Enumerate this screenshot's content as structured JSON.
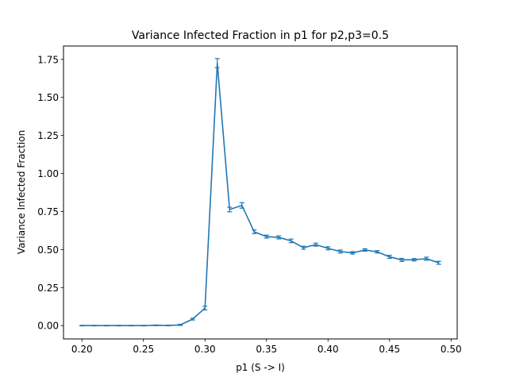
{
  "chart_data": {
    "type": "line",
    "title": "Variance Infected Fraction in p1 for p2,p3=0.5",
    "xlabel": "p1 (S -> I)",
    "ylabel": "Variance Infected Fraction",
    "xlim": [
      0.185,
      0.505
    ],
    "ylim": [
      -0.0875,
      1.8375
    ],
    "xticks": [
      0.2,
      0.25,
      0.3,
      0.35,
      0.4,
      0.45,
      0.5
    ],
    "xtick_labels": [
      "0.20",
      "0.25",
      "0.30",
      "0.35",
      "0.40",
      "0.45",
      "0.50"
    ],
    "yticks": [
      0.0,
      0.25,
      0.5,
      0.75,
      1.0,
      1.25,
      1.5,
      1.75
    ],
    "ytick_labels": [
      "0.00",
      "0.25",
      "0.50",
      "0.75",
      "1.00",
      "1.25",
      "1.50",
      "1.75"
    ],
    "grid": false,
    "color": "#1f77b4",
    "series": [
      {
        "x": [
          0.2,
          0.21,
          0.22,
          0.23,
          0.24,
          0.25,
          0.26,
          0.27,
          0.28,
          0.29,
          0.3,
          0.31,
          0.32,
          0.33,
          0.34,
          0.35,
          0.36,
          0.37,
          0.38,
          0.39,
          0.4,
          0.41,
          0.42,
          0.43,
          0.44,
          0.45,
          0.46,
          0.47,
          0.48,
          0.49
        ],
        "values": [
          0.0,
          0.0,
          0.0,
          0.0,
          0.0,
          0.0,
          0.002,
          0.001,
          0.005,
          0.043,
          0.115,
          1.725,
          0.763,
          0.79,
          0.617,
          0.585,
          0.58,
          0.557,
          0.512,
          0.532,
          0.508,
          0.487,
          0.478,
          0.497,
          0.485,
          0.452,
          0.432,
          0.433,
          0.44,
          0.413
        ],
        "errors": [
          0.002,
          0.002,
          0.002,
          0.002,
          0.002,
          0.002,
          0.002,
          0.002,
          0.004,
          0.006,
          0.012,
          0.03,
          0.015,
          0.018,
          0.012,
          0.01,
          0.01,
          0.012,
          0.01,
          0.01,
          0.01,
          0.01,
          0.008,
          0.008,
          0.008,
          0.01,
          0.01,
          0.008,
          0.01,
          0.01
        ]
      }
    ]
  }
}
